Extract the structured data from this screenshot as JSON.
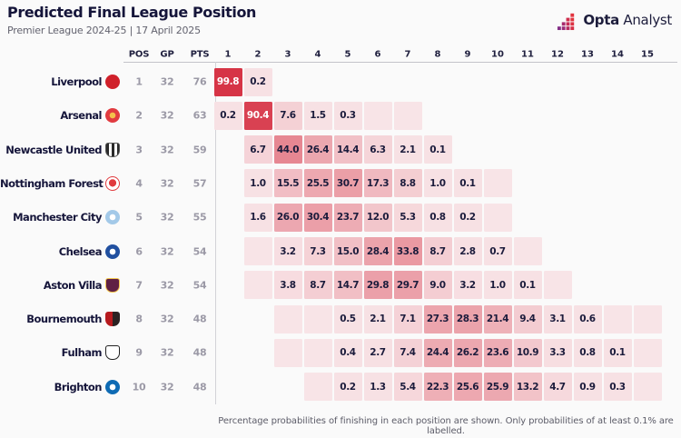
{
  "header": {
    "title": "Predicted Final League Position",
    "subtitle": "Premier League 2024-25 | 17 April 2025",
    "logo": {
      "bold": "Opta",
      "regular": "Analyst"
    }
  },
  "table": {
    "stat_columns": [
      "POS",
      "GP",
      "PTS"
    ]
  },
  "chart_data": {
    "type": "heatmap",
    "title": "Predicted Final League Position",
    "subtitle": "Premier League 2024-25 | 17 April 2025",
    "unit": "%",
    "x_categories": [
      "1",
      "2",
      "3",
      "4",
      "5",
      "6",
      "7",
      "8",
      "9",
      "10",
      "11",
      "12",
      "13",
      "14",
      "15"
    ],
    "note": "Cells with empty string are shaded but unlabelled (probability below 0.1%); null means no cell.",
    "rows": [
      {
        "team": "Liverpool",
        "pos": 1,
        "gp": 32,
        "pts": 76,
        "badge": {
          "c1": "#d0202a",
          "c2": "#d0202a",
          "shape": "circle"
        },
        "probs": [
          "99.8",
          "0.2",
          null,
          null,
          null,
          null,
          null,
          null,
          null,
          null,
          null,
          null,
          null,
          null,
          null
        ]
      },
      {
        "team": "Arsenal",
        "pos": 2,
        "gp": 32,
        "pts": 63,
        "badge": {
          "c1": "#e13b40",
          "c2": "#f3c14b",
          "shape": "circle2"
        },
        "probs": [
          "0.2",
          "90.4",
          "7.6",
          "1.5",
          "0.3",
          "",
          "",
          null,
          null,
          null,
          null,
          null,
          null,
          null,
          null
        ]
      },
      {
        "team": "Newcastle United",
        "pos": 3,
        "gp": 32,
        "pts": 59,
        "badge": {
          "c1": "#2b2b2b",
          "c2": "#ffffff",
          "shape": "stripes"
        },
        "probs": [
          null,
          "6.7",
          "44.0",
          "26.4",
          "14.4",
          "6.3",
          "2.1",
          "0.1",
          null,
          null,
          null,
          null,
          null,
          null,
          null
        ]
      },
      {
        "team": "Nottingham Forest",
        "pos": 4,
        "gp": 32,
        "pts": 57,
        "badge": {
          "c1": "#e03a3e",
          "c2": "#ffffff",
          "shape": "ring"
        },
        "probs": [
          null,
          "1.0",
          "15.5",
          "25.5",
          "30.7",
          "17.3",
          "8.8",
          "1.0",
          "0.1",
          "",
          null,
          null,
          null,
          null,
          null
        ]
      },
      {
        "team": "Manchester City",
        "pos": 5,
        "gp": 32,
        "pts": 55,
        "badge": {
          "c1": "#a3c9e8",
          "c2": "#ffffff",
          "shape": "circle2"
        },
        "probs": [
          null,
          "1.6",
          "26.0",
          "30.4",
          "23.7",
          "12.0",
          "5.3",
          "0.8",
          "0.2",
          "",
          null,
          null,
          null,
          null,
          null
        ]
      },
      {
        "team": "Chelsea",
        "pos": 6,
        "gp": 32,
        "pts": 54,
        "badge": {
          "c1": "#2150a0",
          "c2": "#ffffff",
          "shape": "circle2"
        },
        "probs": [
          null,
          "",
          "3.2",
          "7.3",
          "15.0",
          "28.4",
          "33.8",
          "8.7",
          "2.8",
          "0.7",
          "",
          null,
          null,
          null,
          null
        ]
      },
      {
        "team": "Aston Villa",
        "pos": 7,
        "gp": 32,
        "pts": 54,
        "badge": {
          "c1": "#5f2044",
          "c2": "#f2c74e",
          "shape": "shield"
        },
        "probs": [
          null,
          "",
          "3.8",
          "8.7",
          "14.7",
          "29.8",
          "29.7",
          "9.0",
          "3.2",
          "1.0",
          "0.1",
          "",
          null,
          null,
          null
        ]
      },
      {
        "team": "Bournemouth",
        "pos": 8,
        "gp": 32,
        "pts": 48,
        "badge": {
          "c1": "#b61a1e",
          "c2": "#2b2222",
          "shape": "halves"
        },
        "probs": [
          null,
          null,
          "",
          "",
          "0.5",
          "2.1",
          "7.1",
          "27.3",
          "28.3",
          "21.4",
          "9.4",
          "3.1",
          "0.6",
          "",
          ""
        ]
      },
      {
        "team": "Fulham",
        "pos": 9,
        "gp": 32,
        "pts": 48,
        "badge": {
          "c1": "#ffffff",
          "c2": "#222222",
          "shape": "shield"
        },
        "probs": [
          null,
          null,
          "",
          "",
          "0.4",
          "2.7",
          "7.4",
          "24.4",
          "26.2",
          "23.6",
          "10.9",
          "3.3",
          "0.8",
          "0.1",
          ""
        ]
      },
      {
        "team": "Brighton",
        "pos": 10,
        "gp": 32,
        "pts": 48,
        "badge": {
          "c1": "#0f6bb4",
          "c2": "#ffffff",
          "shape": "circle2"
        },
        "probs": [
          null,
          null,
          null,
          "",
          "0.2",
          "1.3",
          "5.4",
          "22.3",
          "25.6",
          "25.9",
          "13.2",
          "4.7",
          "0.9",
          "0.3",
          ""
        ]
      }
    ]
  },
  "colors": {
    "heat_high": "#d63446",
    "heat_low": "#faeef0",
    "accent_text": "#15153a",
    "muted_text": "#9b99a6",
    "logo_gradient": [
      "#832d86",
      "#a62a6e",
      "#c62b55",
      "#e2333e"
    ]
  },
  "footer": {
    "note": "Percentage probabilities of finishing in each position are shown. Only probabilities of at least 0.1% are labelled."
  }
}
